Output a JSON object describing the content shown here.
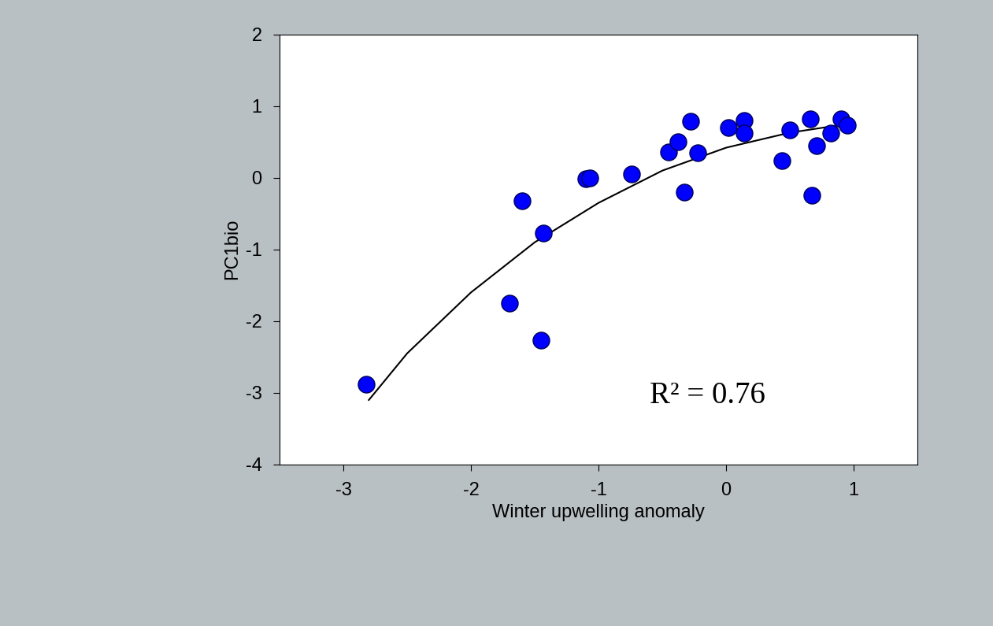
{
  "chart_data": {
    "type": "scatter",
    "x_label": "Winter upwelling anomaly",
    "y_label": "PC1bio",
    "annotation": "R² = 0.76",
    "x": [
      -2.82,
      -1.7,
      -1.6,
      -1.45,
      -1.43,
      -1.1,
      -1.07,
      -0.74,
      -0.45,
      -0.38,
      -0.33,
      -0.28,
      -0.22,
      0.02,
      0.14,
      0.14,
      0.44,
      0.5,
      0.66,
      0.67,
      0.71,
      0.82,
      0.9,
      0.95
    ],
    "values": [
      -2.88,
      -1.75,
      -0.32,
      -2.27,
      -0.77,
      -0.01,
      0.0,
      0.05,
      0.36,
      0.5,
      -0.2,
      0.79,
      0.35,
      0.7,
      0.8,
      0.62,
      0.24,
      0.67,
      0.82,
      -0.24,
      0.45,
      0.62,
      0.82,
      0.73
    ],
    "color": "#0000ff",
    "marker": "circle",
    "fit_line": {
      "type": "line",
      "color": "#000000",
      "line_style": "solid",
      "x": [
        -2.8,
        -2.5,
        -2.0,
        -1.5,
        -1.0,
        -0.5,
        0.0,
        0.5,
        0.95
      ],
      "values": [
        -3.1,
        -2.45,
        -1.6,
        -0.9,
        -0.35,
        0.1,
        0.42,
        0.63,
        0.75
      ]
    },
    "xlim": [
      -3.5,
      1.5
    ],
    "xticks": [
      -3,
      -2,
      -1,
      0,
      1
    ],
    "ylim": [
      -4,
      2
    ],
    "yticks": [
      -4,
      -3,
      -2,
      -1,
      0,
      1,
      2
    ],
    "grid": false
  }
}
